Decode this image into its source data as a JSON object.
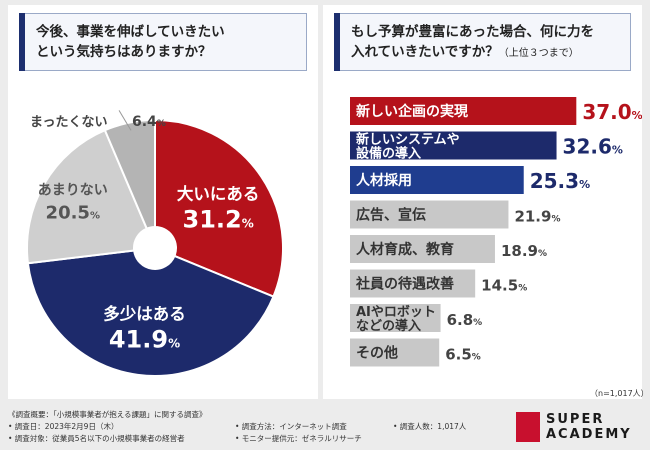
{
  "left_question": {
    "line1": "今後、事業を伸ばしていきたい",
    "line2": "という気持ちはありますか？"
  },
  "right_question": {
    "line1": "もし予算が豊富にあった場合、何に力を",
    "line2": "入れていきたいですか？",
    "line2_sub": "（上位３つまで）"
  },
  "sample_note": "（n=1,017人）",
  "chart_data": [
    {
      "type": "pie",
      "title": "今後、事業を伸ばしていきたいという気持ちはありますか？",
      "style": "donut",
      "categories": [
        "大いにある",
        "多少はある",
        "あまりない",
        "まったくない"
      ],
      "values": [
        31.2,
        41.9,
        20.5,
        6.4
      ],
      "value_labels": [
        "31.2%",
        "41.9%",
        "20.5%",
        "6.4%"
      ],
      "colors": [
        "#b5121b",
        "#1d2a6b",
        "#cfcfcf",
        "#b4b4b4"
      ],
      "label_colors": [
        "#ffffff",
        "#ffffff",
        "#555555",
        "#444444"
      ]
    },
    {
      "type": "bar",
      "orientation": "horizontal",
      "title": "もし予算が豊富にあった場合、何に力を入れていきたいですか？（上位３つまで）",
      "categories": [
        "新しい企画の実現",
        "新しいシステムや設備の導入",
        "人材採用",
        "広告、宣伝",
        "人材育成、教育",
        "社員の待遇改善",
        "AIやロボットなどの導入",
        "その他"
      ],
      "category_lines": [
        [
          "新しい企画の実現"
        ],
        [
          "新しいシステムや",
          "設備の導入"
        ],
        [
          "人材採用"
        ],
        [
          "広告、宣伝"
        ],
        [
          "人材育成、教育"
        ],
        [
          "社員の待遇改善"
        ],
        [
          "AIやロボット",
          "などの導入"
        ],
        [
          "その他"
        ]
      ],
      "values": [
        37.0,
        32.6,
        25.3,
        21.9,
        18.9,
        14.5,
        6.8,
        6.5
      ],
      "value_labels": [
        "37.0%",
        "32.6%",
        "25.3%",
        "21.9%",
        "18.9%",
        "14.5%",
        "6.8%",
        "6.5%"
      ],
      "colors": [
        "#b5121b",
        "#1d2a6b",
        "#1f3d8f",
        "#c8c8c8",
        "#c8c8c8",
        "#c8c8c8",
        "#c8c8c8",
        "#c8c8c8"
      ],
      "text_colors": [
        "#ffffff",
        "#ffffff",
        "#ffffff",
        "#333333",
        "#333333",
        "#333333",
        "#333333",
        "#333333"
      ],
      "value_colors": [
        "#b5121b",
        "#1d2a6b",
        "#1d2a6b",
        "#444444",
        "#444444",
        "#444444",
        "#444444",
        "#444444"
      ],
      "xlim": [
        0,
        40
      ]
    }
  ],
  "footer": {
    "overview": "《調査概要：「小規模事業者が抱える課題」に関する調査》",
    "date": "• 調査日：2023年2月9日（木）",
    "method": "• 調査方法：インターネット調査",
    "count": "• 調査人数：1,017人",
    "target": "• 調査対象：従業員5名以下の小規模事業者の経営者",
    "provider": "• モニター提供元：ゼネラルリサーチ"
  },
  "brand": {
    "line1": "SUPER",
    "line2": "ACADEMY",
    "color": "#c8102e"
  }
}
